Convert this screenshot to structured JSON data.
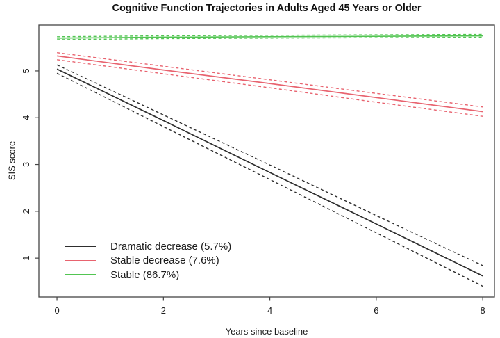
{
  "figure": {
    "type": "statistical-plot"
  },
  "chart_data": {
    "type": "line",
    "title": "Cognitive Function Trajectories in Adults Aged 45 Years or Older",
    "xlabel": "Years since baseline",
    "ylabel": "SIS score",
    "x": [
      0,
      2,
      4,
      6,
      8
    ],
    "x_ticks": [
      "0",
      "2",
      "4",
      "6",
      "8"
    ],
    "y_ticks": [
      "1",
      "2",
      "3",
      "4",
      "5"
    ],
    "xlim": [
      -0.34,
      8.22
    ],
    "ylim": [
      0.17,
      5.98
    ],
    "grid": false,
    "legend_position": "bottom-left",
    "ci_style": "dashed",
    "axis_color": "#444444",
    "text_color": "#1c1c1c",
    "series": [
      {
        "id": "dramatic-decrease",
        "name": "Dramatic decrease (5.7%)",
        "color": "#2e2e2e",
        "mean": [
          5.04,
          3.94,
          2.83,
          1.73,
          0.62
        ],
        "ci_lower": [
          4.95,
          3.81,
          2.68,
          1.54,
          0.4
        ],
        "ci_upper": [
          5.13,
          4.06,
          2.99,
          1.91,
          0.84
        ]
      },
      {
        "id": "stable-decrease",
        "name": "Stable decrease (7.6%)",
        "color": "#e8636f",
        "mean": [
          5.32,
          5.02,
          4.73,
          4.43,
          4.13
        ],
        "ci_lower": [
          5.24,
          4.94,
          4.64,
          4.33,
          4.03
        ],
        "ci_upper": [
          5.39,
          5.1,
          4.81,
          4.52,
          4.23
        ]
      },
      {
        "id": "stable",
        "name": "Stable (86.7%)",
        "color": "#52c552",
        "mean": [
          5.7,
          5.72,
          5.73,
          5.74,
          5.75
        ],
        "ci_lower": [
          5.67,
          5.69,
          5.7,
          5.71,
          5.72
        ],
        "ci_upper": [
          5.73,
          5.75,
          5.76,
          5.77,
          5.78
        ]
      }
    ]
  }
}
